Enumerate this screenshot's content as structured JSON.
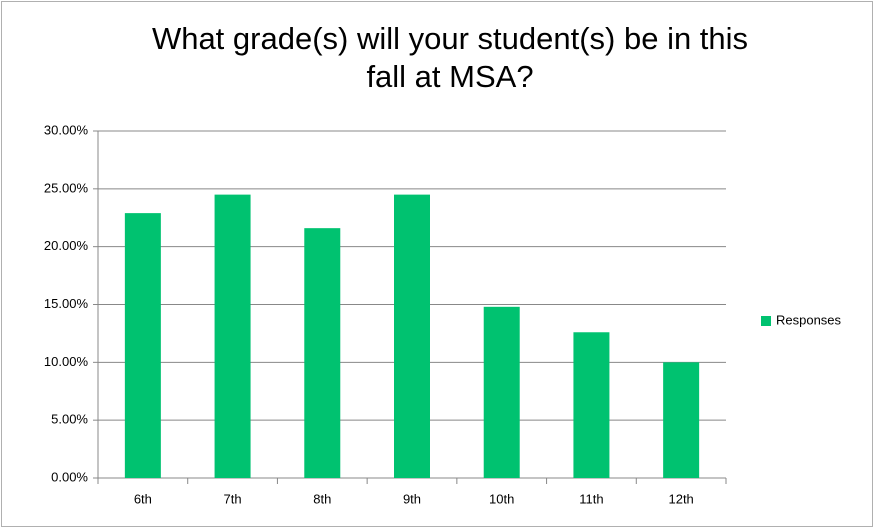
{
  "chart_data": {
    "type": "bar",
    "title": "What grade(s) will your student(s) be in this fall at MSA?",
    "categories": [
      "6th",
      "7th",
      "8th",
      "9th",
      "10th",
      "11th",
      "12th"
    ],
    "series": [
      {
        "name": "Responses",
        "color": "#00c270",
        "values": [
          22.9,
          24.5,
          21.6,
          24.5,
          14.8,
          12.6,
          10.0
        ]
      }
    ],
    "ylim": [
      0,
      30
    ],
    "yticks": [
      {
        "value": 0,
        "label": "0.00%"
      },
      {
        "value": 5,
        "label": "5.00%"
      },
      {
        "value": 10,
        "label": "10.00%"
      },
      {
        "value": 15,
        "label": "15.00%"
      },
      {
        "value": 20,
        "label": "20.00%"
      },
      {
        "value": 25,
        "label": "25.00%"
      },
      {
        "value": 30,
        "label": "30.00%"
      }
    ],
    "grid": true,
    "legend": "right"
  }
}
